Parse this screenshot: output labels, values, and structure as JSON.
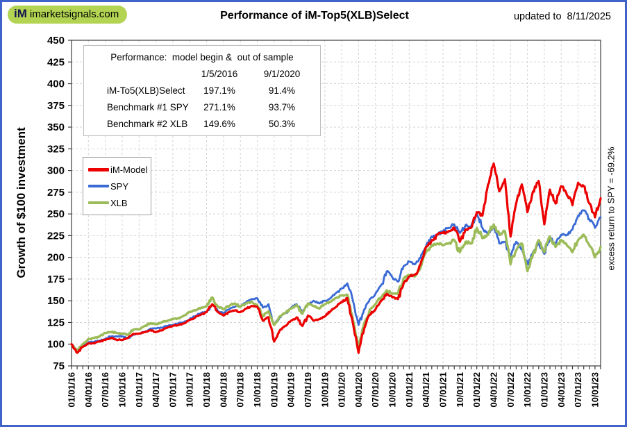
{
  "colors": {
    "frame": "#3F63C8",
    "logo_pill": "#B2D452",
    "grid": "#D4D4D4",
    "axis": "#3C3C3C"
  },
  "header": {
    "logo_im": "iM",
    "logo_domain": "imarketsignals.com",
    "title": "Performance of iM-Top5(XLB)Select",
    "updated": "updated to  8/11/2025"
  },
  "performance_table": {
    "title": "Performance:  model begin &  out of sample",
    "col_dates": [
      "1/5/2016",
      "9/1/2020"
    ],
    "rows": [
      {
        "label": "iM-To5(XLB)Select",
        "begin": "197.1%",
        "oos": "91.4%"
      },
      {
        "label": "Benchmark #1 SPY",
        "begin": "271.1%",
        "oos": "93.7%"
      },
      {
        "label": "Benchmark #2 XLB",
        "begin": "149.6%",
        "oos": "50.3%"
      }
    ]
  },
  "chart_data": {
    "type": "line",
    "title": "Performance of iM-Top5(XLB)Select",
    "ylabel": "Growth of $100 investment",
    "right_annotation": "excess return to SPY = -69.2%",
    "ylim": [
      75,
      450
    ],
    "y_ticks": [
      75,
      100,
      125,
      150,
      175,
      200,
      225,
      250,
      275,
      300,
      325,
      350,
      375,
      400,
      425,
      450
    ],
    "grid": true,
    "legend_position": "upper-left",
    "x_start": "2016-01",
    "x_freq": "monthly",
    "x_tick_every_months": 3,
    "x_tick_labels": [
      "01/01/16",
      "04/01/16",
      "07/01/16",
      "10/01/16",
      "01/01/17",
      "04/01/17",
      "07/01/17",
      "10/01/17",
      "01/01/18",
      "04/01/18",
      "07/01/18",
      "10/01/18",
      "01/01/19",
      "04/01/19",
      "07/01/19",
      "10/01/19",
      "01/01/20",
      "04/01/20",
      "07/01/20",
      "10/01/20",
      "01/01/21",
      "04/01/21",
      "07/01/21",
      "10/01/21",
      "01/01/22",
      "04/01/22",
      "07/01/22",
      "10/01/22",
      "01/01/23",
      "04/01/23",
      "07/01/23",
      "10/01/23"
    ],
    "series": [
      {
        "name": "iM-Model",
        "color": "#EC0000",
        "values": [
          100,
          90,
          97,
          101,
          101,
          103,
          105,
          107,
          105,
          105,
          107,
          112,
          112,
          114,
          116,
          114,
          116,
          119,
          121,
          122,
          124,
          128,
          131,
          134,
          137,
          146,
          137,
          133,
          137,
          139,
          137,
          141,
          144,
          143,
          127,
          131,
          103,
          116,
          121,
          127,
          131,
          121,
          133,
          127,
          129,
          132,
          138,
          143,
          149,
          153,
          124,
          90,
          118,
          134,
          140,
          150,
          158,
          154,
          152,
          170,
          178,
          180,
          192,
          212,
          220,
          226,
          228,
          230,
          234,
          218,
          232,
          234,
          252,
          248,
          284,
          308,
          276,
          290,
          224,
          262,
          284,
          252,
          276,
          288,
          238,
          278,
          262,
          282,
          272,
          260,
          286,
          282,
          262,
          246,
          268
        ]
      },
      {
        "name": "SPY",
        "color": "#3A6AD4",
        "values": [
          100,
          92,
          97,
          102,
          103,
          104,
          106,
          109,
          109,
          109,
          107,
          111,
          112,
          114,
          118,
          118,
          119,
          121,
          122,
          124,
          125,
          129,
          132,
          136,
          137,
          145,
          138,
          136,
          140,
          143,
          144,
          148,
          152,
          153,
          142,
          146,
          122,
          131,
          136,
          142,
          146,
          137,
          147,
          150,
          147,
          150,
          153,
          159,
          164,
          170,
          150,
          122,
          140,
          152,
          158,
          168,
          184,
          177,
          172,
          190,
          195,
          192,
          199,
          213,
          224,
          226,
          230,
          234,
          238,
          228,
          237,
          236,
          251,
          234,
          228,
          236,
          216,
          218,
          200,
          218,
          210,
          192,
          206,
          216,
          204,
          222,
          216,
          226,
          226,
          232,
          248,
          254,
          244,
          234,
          246
        ]
      },
      {
        "name": "XLB",
        "color": "#9CBB59",
        "values": [
          100,
          93,
          100,
          106,
          107,
          109,
          113,
          114,
          113,
          112,
          111,
          117,
          117,
          121,
          124,
          123,
          125,
          127,
          129,
          130,
          133,
          137,
          139,
          142,
          144,
          154,
          143,
          140,
          144,
          147,
          143,
          147,
          149,
          145,
          132,
          138,
          122,
          132,
          136,
          141,
          145,
          135,
          147,
          144,
          141,
          146,
          149,
          153,
          156,
          157,
          128,
          97,
          124,
          140,
          146,
          154,
          162,
          158,
          158,
          176,
          180,
          178,
          188,
          206,
          214,
          216,
          214,
          216,
          220,
          206,
          218,
          216,
          234,
          222,
          226,
          238,
          226,
          230,
          192,
          208,
          216,
          184,
          204,
          220,
          206,
          224,
          212,
          220,
          214,
          206,
          220,
          226,
          214,
          200,
          212
        ]
      }
    ]
  }
}
